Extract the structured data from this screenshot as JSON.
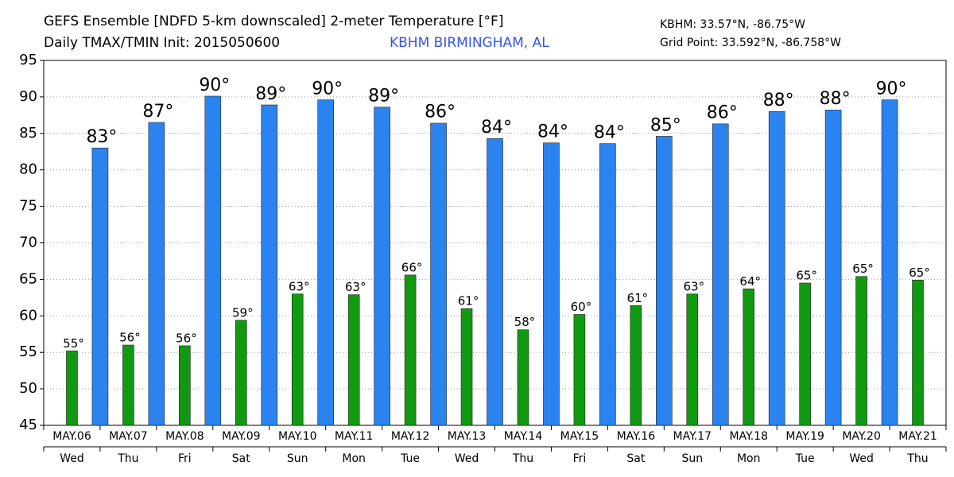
{
  "chart_data": {
    "type": "bar",
    "title": "GEFS Ensemble [NDFD 5-km downscaled] 2-meter Temperature [°F]",
    "subtitle": "Daily TMAX/TMIN Init: 2015050600",
    "location": "KBHM BIRMINGHAM, AL",
    "station_coords": "KBHM: 33.57°N, -86.75°W",
    "grid_point": "Grid Point: 33.592°N, -86.758°W",
    "categories": [
      "MAY.06",
      "MAY.07",
      "MAY.08",
      "MAY.09",
      "MAY.10",
      "MAY.11",
      "MAY.12",
      "MAY.13",
      "MAY.14",
      "MAY.15",
      "MAY.16",
      "MAY.17",
      "MAY.18",
      "MAY.19",
      "MAY.20",
      "MAY.21"
    ],
    "weekdays": [
      "Wed",
      "Thu",
      "Fri",
      "Sat",
      "Sun",
      "Mon",
      "Tue",
      "Wed",
      "Thu",
      "Fri",
      "Sat",
      "Sun",
      "Mon",
      "Tue",
      "Wed",
      "Thu"
    ],
    "series": [
      {
        "name": "TMIN",
        "color": "#119911",
        "values": [
          55.2,
          56.0,
          55.9,
          59.4,
          63.0,
          62.9,
          65.6,
          61.0,
          58.1,
          60.2,
          61.4,
          63.0,
          63.7,
          64.5,
          65.4,
          64.9
        ],
        "value_labels": [
          "55°",
          "56°",
          "56°",
          "59°",
          "63°",
          "63°",
          "66°",
          "61°",
          "58°",
          "60°",
          "61°",
          "63°",
          "64°",
          "65°",
          "65°",
          "65°"
        ]
      },
      {
        "name": "TMAX",
        "color": "#2b83f0",
        "values": [
          83.0,
          86.5,
          90.1,
          88.9,
          89.6,
          88.6,
          86.4,
          84.3,
          83.7,
          83.6,
          84.6,
          86.3,
          88.0,
          88.2,
          89.6,
          null
        ],
        "value_labels": [
          "83°",
          "87°",
          "90°",
          "89°",
          "90°",
          "89°",
          "86°",
          "84°",
          "84°",
          "84°",
          "85°",
          "86°",
          "88°",
          "88°",
          "90°",
          null
        ]
      }
    ],
    "ylim": [
      45,
      95
    ],
    "yticks": [
      45,
      50,
      55,
      60,
      65,
      70,
      75,
      80,
      85,
      90,
      95
    ],
    "grid": true
  }
}
